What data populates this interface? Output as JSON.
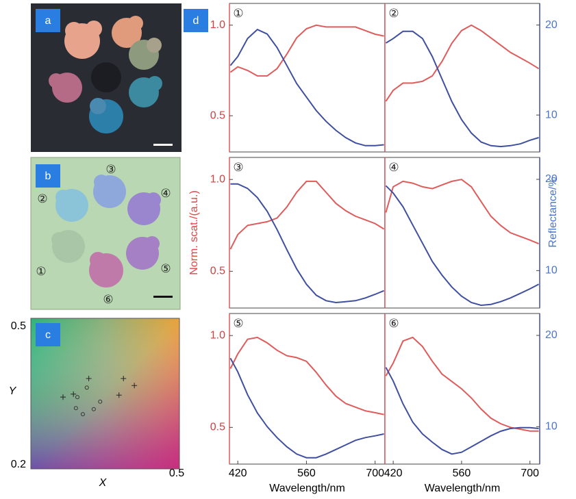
{
  "panel_labels": {
    "a": "a",
    "b": "b",
    "c": "c",
    "d": "d"
  },
  "photo_b_markers": [
    "①",
    "②",
    "③",
    "④",
    "⑤",
    "⑥"
  ],
  "axis_titles": {
    "left": "Norm. scat./(a.u.)",
    "right": "Reflectance/%"
  },
  "chart_data": [
    {
      "type": "scatter",
      "xlim": [
        0.2,
        0.5
      ],
      "ylim": [
        0.2,
        0.5
      ],
      "xticks": [
        0.5
      ],
      "yticks": [
        0.2,
        0.5
      ],
      "xlabel": "X",
      "ylabel": "Y",
      "series": [
        {
          "marker": "+",
          "color": "#222222",
          "x": [
            0.265,
            0.286,
            0.317,
            0.387,
            0.409,
            0.378
          ],
          "values": [
            0.343,
            0.349,
            0.38,
            0.38,
            0.366,
            0.347
          ]
        },
        {
          "marker": "o",
          "color": "#333333",
          "x": [
            0.294,
            0.313,
            0.291,
            0.305,
            0.327,
            0.34
          ],
          "values": [
            0.343,
            0.362,
            0.321,
            0.309,
            0.319,
            0.334
          ]
        }
      ]
    },
    {
      "type": "line",
      "label": "①",
      "x": [
        405,
        420,
        440,
        460,
        480,
        500,
        520,
        540,
        560,
        580,
        600,
        620,
        640,
        660,
        680,
        700,
        718
      ],
      "xlim": [
        403,
        720
      ],
      "ylim": [
        0.3,
        1.12
      ],
      "y2lim": [
        5.9,
        22.4
      ],
      "yticks": [
        0.5,
        {
          "value": 1,
          "label": "1.0"
        }
      ],
      "series": [
        {
          "color": "#e05a5a",
          "values": [
            0.74,
            0.77,
            0.75,
            0.72,
            0.72,
            0.76,
            0.84,
            0.93,
            0.98,
            1.0,
            0.99,
            0.99,
            0.99,
            0.99,
            0.97,
            0.95,
            0.94
          ]
        },
        {
          "color": "#3f4fa0",
          "axis": "y2",
          "values": [
            15.5,
            16.5,
            18.5,
            19.5,
            19.0,
            17.5,
            15.5,
            13.5,
            12,
            10.5,
            9.3,
            8.3,
            7.5,
            6.9,
            6.6,
            6.6,
            6.7
          ]
        }
      ]
    },
    {
      "type": "line",
      "label": "②",
      "x": [
        405,
        420,
        440,
        460,
        480,
        500,
        520,
        540,
        560,
        580,
        600,
        620,
        640,
        660,
        680,
        700,
        718
      ],
      "xlim": [
        403,
        720
      ],
      "ylim": [
        0.3,
        1.12
      ],
      "y2lim": [
        5.9,
        22.4
      ],
      "y2ticks": [
        10,
        20
      ],
      "series": [
        {
          "color": "#e05a5a",
          "values": [
            0.58,
            0.64,
            0.68,
            0.68,
            0.69,
            0.72,
            0.8,
            0.9,
            0.97,
            1.0,
            0.97,
            0.93,
            0.89,
            0.85,
            0.82,
            0.79,
            0.76
          ]
        },
        {
          "color": "#3f4fa0",
          "axis": "y2",
          "values": [
            18,
            18.5,
            19.3,
            19.3,
            18.5,
            16.5,
            14,
            11.5,
            9.5,
            8,
            7,
            6.6,
            6.5,
            6.6,
            6.8,
            7.2,
            7.5
          ]
        }
      ]
    },
    {
      "type": "line",
      "label": "③",
      "x": [
        405,
        420,
        440,
        460,
        480,
        500,
        520,
        540,
        560,
        580,
        600,
        620,
        640,
        660,
        680,
        700,
        718
      ],
      "xlim": [
        403,
        720
      ],
      "ylim": [
        0.3,
        1.12
      ],
      "y2lim": [
        5.9,
        22.4
      ],
      "yticks": [
        0.5,
        {
          "value": 1,
          "label": "1.0"
        }
      ],
      "series": [
        {
          "color": "#e05a5a",
          "values": [
            0.62,
            0.7,
            0.75,
            0.76,
            0.77,
            0.79,
            0.85,
            0.93,
            0.99,
            0.99,
            0.93,
            0.87,
            0.83,
            0.8,
            0.78,
            0.76,
            0.73
          ]
        },
        {
          "color": "#3f4fa0",
          "axis": "y2",
          "values": [
            19.5,
            19.5,
            19,
            18,
            16.5,
            14.5,
            12.3,
            10.2,
            8.5,
            7.3,
            6.7,
            6.5,
            6.6,
            6.7,
            7.0,
            7.4,
            7.8
          ]
        }
      ]
    },
    {
      "type": "line",
      "label": "④",
      "x": [
        405,
        420,
        440,
        460,
        480,
        500,
        520,
        540,
        560,
        580,
        600,
        620,
        640,
        660,
        680,
        700,
        718
      ],
      "xlim": [
        403,
        720
      ],
      "ylim": [
        0.3,
        1.12
      ],
      "y2lim": [
        5.9,
        22.4
      ],
      "y2ticks": [
        10,
        20
      ],
      "series": [
        {
          "color": "#e05a5a",
          "values": [
            0.82,
            0.96,
            0.99,
            0.98,
            0.96,
            0.95,
            0.97,
            0.99,
            1.0,
            0.96,
            0.88,
            0.8,
            0.75,
            0.71,
            0.69,
            0.67,
            0.65
          ]
        },
        {
          "color": "#3f4fa0",
          "axis": "y2",
          "values": [
            19.3,
            18.5,
            17,
            15,
            13,
            11,
            9.5,
            8.2,
            7.2,
            6.5,
            6.2,
            6.3,
            6.6,
            7.0,
            7.5,
            8.0,
            8.5
          ]
        }
      ]
    },
    {
      "type": "line",
      "label": "⑤",
      "x": [
        405,
        420,
        440,
        460,
        480,
        500,
        520,
        540,
        560,
        580,
        600,
        620,
        640,
        660,
        680,
        700,
        718
      ],
      "xlim": [
        403,
        720
      ],
      "ylim": [
        0.3,
        1.12
      ],
      "y2lim": [
        5.9,
        22.4
      ],
      "yticks": [
        0.5,
        {
          "value": 1,
          "label": "1.0"
        }
      ],
      "xticks": [
        420,
        560,
        700
      ],
      "xlabel": "Wavelength/nm",
      "series": [
        {
          "color": "#e05a5a",
          "values": [
            0.82,
            0.9,
            0.98,
            0.99,
            0.96,
            0.92,
            0.89,
            0.88,
            0.86,
            0.8,
            0.73,
            0.67,
            0.63,
            0.61,
            0.59,
            0.58,
            0.57
          ]
        },
        {
          "color": "#3f4fa0",
          "axis": "y2",
          "values": [
            17.5,
            16,
            13.5,
            11.5,
            10,
            8.8,
            7.8,
            7.0,
            6.6,
            6.6,
            7.0,
            7.5,
            8.0,
            8.5,
            8.8,
            9.0,
            9.2
          ]
        }
      ]
    },
    {
      "type": "line",
      "label": "⑥",
      "x": [
        405,
        420,
        440,
        460,
        480,
        500,
        520,
        540,
        560,
        580,
        600,
        620,
        640,
        660,
        680,
        700,
        718
      ],
      "xlim": [
        403,
        720
      ],
      "ylim": [
        0.3,
        1.12
      ],
      "y2lim": [
        5.9,
        22.4
      ],
      "y2ticks": [
        10,
        20
      ],
      "xticks": [
        420,
        560,
        700
      ],
      "xlabel": "Wavelength/nm",
      "series": [
        {
          "color": "#e05a5a",
          "values": [
            0.78,
            0.85,
            0.97,
            0.99,
            0.94,
            0.86,
            0.79,
            0.75,
            0.71,
            0.66,
            0.6,
            0.55,
            0.52,
            0.5,
            0.49,
            0.48,
            0.48
          ]
        },
        {
          "color": "#3f4fa0",
          "axis": "y2",
          "values": [
            16.5,
            15,
            12.5,
            10.5,
            9.2,
            8.3,
            7.5,
            7.0,
            7.2,
            7.8,
            8.4,
            9.0,
            9.5,
            9.8,
            9.9,
            9.9,
            9.8
          ]
        }
      ]
    }
  ]
}
